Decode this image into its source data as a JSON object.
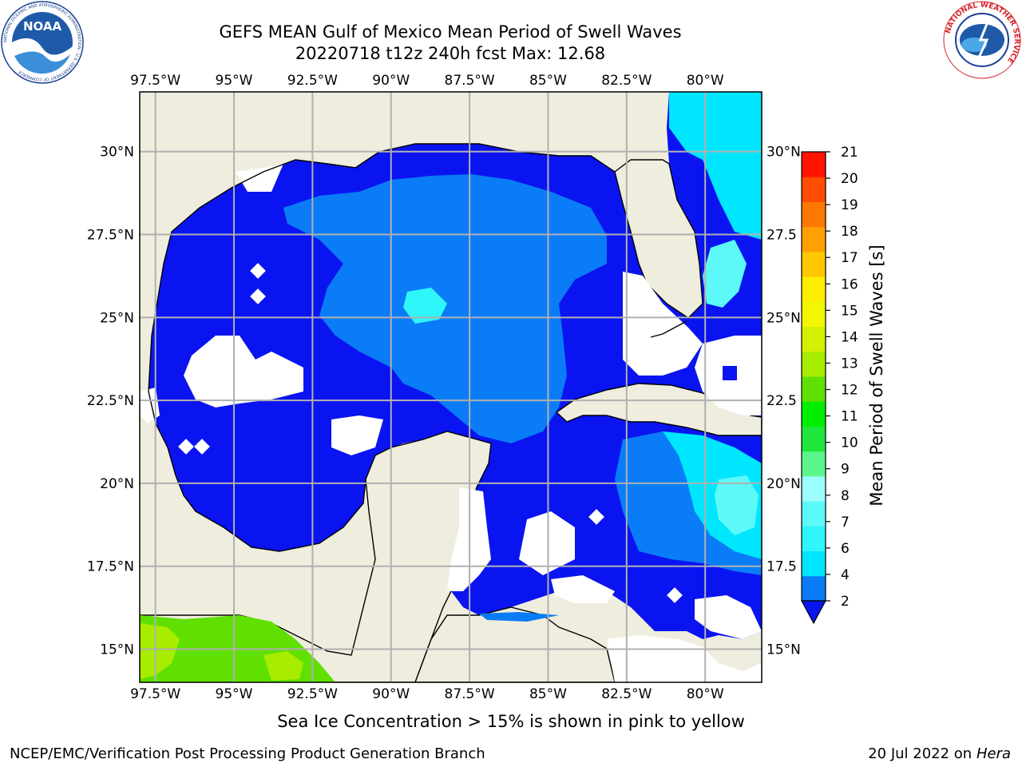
{
  "title": {
    "line1": "GEFS MEAN Gulf of Mexico Mean Period of Swell Waves",
    "line2": "20220718 t12z 240h fcst   Max: 12.68"
  },
  "caption": "Sea Ice Concentration > 15% is shown in pink to yellow",
  "footer": {
    "left": "NCEP/EMC/Verification Post Processing Product Generation Branch",
    "right_prefix": "20 Jul 2022 on ",
    "right_machine": "Hera"
  },
  "logos": {
    "noaa": {
      "text": "NOAA",
      "ring_text": "NATIONAL OCEANIC AND ATMOSPHERIC ADMINISTRATION · U.S. DEPARTMENT OF COMMERCE"
    },
    "nws": {
      "ring_text": "NATIONAL WEATHER SERVICE"
    }
  },
  "map": {
    "lon_labels": [
      "97.5°W",
      "95°W",
      "92.5°W",
      "90°W",
      "87.5°W",
      "85°W",
      "82.5°W",
      "80°W"
    ],
    "lon_values": [
      -97.5,
      -95,
      -92.5,
      -90,
      -87.5,
      -85,
      -82.5,
      -80
    ],
    "lat_labels": [
      "30°N",
      "27.5°N",
      "25°N",
      "22.5°N",
      "20°N",
      "17.5°N",
      "15°N"
    ],
    "lat_labels_right": [
      "30°N",
      "27.5",
      "25°N",
      "22.5",
      "20°N",
      "17.5",
      "15°N"
    ],
    "lat_values": [
      30,
      27.5,
      25,
      22.5,
      20,
      17.5,
      15
    ],
    "extent": {
      "lon_min": -98,
      "lon_max": -78.2,
      "lat_min": 14,
      "lat_max": 31.8
    },
    "colors": {
      "land": "#efedde",
      "grid": "#b0b0b0",
      "no_data": "#ffffff"
    }
  },
  "colorbar": {
    "label": "Mean Period of Swell Waves [s]",
    "ticks": [
      "2",
      "4",
      "6",
      "7",
      "8",
      "9",
      "10",
      "11",
      "12",
      "13",
      "14",
      "15",
      "16",
      "17",
      "18",
      "19",
      "20",
      "21"
    ],
    "colors": [
      "#0a7cf7",
      "#00e6ff",
      "#2ef6fa",
      "#5df8f8",
      "#9cfefc",
      "#5af68b",
      "#1fe63a",
      "#00ee00",
      "#60e000",
      "#a8ec00",
      "#d2f000",
      "#f2f600",
      "#ffee00",
      "#ffc800",
      "#ffa000",
      "#ff7800",
      "#ff4c00",
      "#ff1400"
    ],
    "extend_color": "#0a14f0"
  },
  "chart_data": {
    "type": "heatmap",
    "title": "GEFS MEAN Gulf of Mexico Mean Period of Swell Waves",
    "subtitle": "20220718 t12z 240h fcst   Max: 12.68",
    "variable": "Mean Period of Swell Waves [s]",
    "max": 12.68,
    "levels": [
      2,
      4,
      6,
      7,
      8,
      9,
      10,
      11,
      12,
      13,
      14,
      15,
      16,
      17,
      18,
      19,
      20,
      21
    ],
    "xlabel": "",
    "ylabel": "",
    "xlim": [
      -98,
      -78.2
    ],
    "ylim": [
      14,
      31.8
    ],
    "regions": [
      {
        "lon": [
          -97.5,
          -90
        ],
        "lat": [
          18,
          29.5
        ],
        "period_range": "2 (below)"
      },
      {
        "lon": [
          -91.5,
          -85
        ],
        "lat": [
          21,
          28.5
        ],
        "period_range": "2-4"
      },
      {
        "lon": [
          -80.5,
          -78.2
        ],
        "lat": [
          28,
          31.8
        ],
        "period_range": "4-6"
      },
      {
        "lon": [
          -82,
          -78.2
        ],
        "lat": [
          17.5,
          22
        ],
        "period_range": "4-8"
      },
      {
        "lon": [
          -98,
          -93.5
        ],
        "lat": [
          14,
          16
        ],
        "period_range": "12-14"
      }
    ]
  }
}
